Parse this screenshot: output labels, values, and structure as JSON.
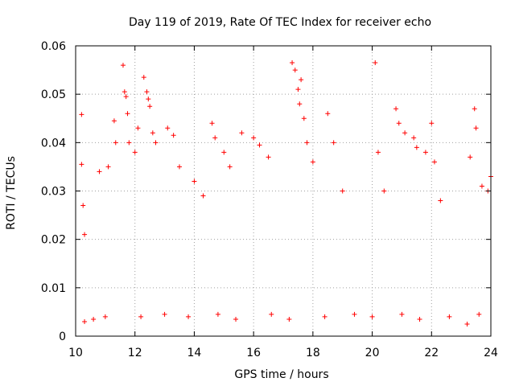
{
  "chart_data": {
    "type": "scatter",
    "title": "Day 119 of 2019, Rate Of TEC Index for receiver echo",
    "xlabel": "GPS time / hours",
    "ylabel": "ROTI / TECUs",
    "xlim": [
      10,
      24
    ],
    "ylim": [
      0,
      0.06
    ],
    "xticks": [
      "10",
      "12",
      "14",
      "16",
      "18",
      "20",
      "22",
      "24"
    ],
    "yticks": [
      "0",
      "0.01",
      "0.02",
      "0.03",
      "0.04",
      "0.05",
      "0.06"
    ],
    "grid": true,
    "marker": "plus",
    "color": "#ff0000",
    "series": [
      {
        "points": [
          [
            10.2,
            0.0458
          ],
          [
            10.2,
            0.0355
          ],
          [
            10.25,
            0.027
          ],
          [
            10.3,
            0.021
          ],
          [
            10.8,
            0.034
          ],
          [
            11.1,
            0.035
          ],
          [
            11.3,
            0.0445
          ],
          [
            11.35,
            0.04
          ],
          [
            11.6,
            0.056
          ],
          [
            11.65,
            0.0505
          ],
          [
            11.7,
            0.0495
          ],
          [
            11.75,
            0.046
          ],
          [
            11.8,
            0.04
          ],
          [
            12.0,
            0.038
          ],
          [
            12.1,
            0.043
          ],
          [
            12.3,
            0.0535
          ],
          [
            12.4,
            0.0505
          ],
          [
            12.45,
            0.049
          ],
          [
            12.5,
            0.0475
          ],
          [
            12.6,
            0.042
          ],
          [
            12.7,
            0.04
          ],
          [
            13.1,
            0.043
          ],
          [
            13.3,
            0.0415
          ],
          [
            13.5,
            0.035
          ],
          [
            14.0,
            0.032
          ],
          [
            14.3,
            0.029
          ],
          [
            14.6,
            0.044
          ],
          [
            14.7,
            0.041
          ],
          [
            15.0,
            0.038
          ],
          [
            15.2,
            0.035
          ],
          [
            15.6,
            0.042
          ],
          [
            16.0,
            0.041
          ],
          [
            16.2,
            0.0395
          ],
          [
            16.5,
            0.037
          ],
          [
            17.3,
            0.0565
          ],
          [
            17.4,
            0.055
          ],
          [
            17.5,
            0.051
          ],
          [
            17.55,
            0.048
          ],
          [
            17.6,
            0.053
          ],
          [
            17.7,
            0.045
          ],
          [
            17.8,
            0.04
          ],
          [
            18.0,
            0.036
          ],
          [
            18.5,
            0.046
          ],
          [
            18.7,
            0.04
          ],
          [
            19.0,
            0.03
          ],
          [
            20.1,
            0.0565
          ],
          [
            20.2,
            0.038
          ],
          [
            20.4,
            0.03
          ],
          [
            20.8,
            0.047
          ],
          [
            20.9,
            0.044
          ],
          [
            21.1,
            0.042
          ],
          [
            21.4,
            0.041
          ],
          [
            21.5,
            0.039
          ],
          [
            21.8,
            0.038
          ],
          [
            22.0,
            0.044
          ],
          [
            22.1,
            0.036
          ],
          [
            22.3,
            0.028
          ],
          [
            23.3,
            0.037
          ],
          [
            23.45,
            0.047
          ],
          [
            23.5,
            0.043
          ],
          [
            23.7,
            0.031
          ],
          [
            23.9,
            0.03
          ],
          [
            24.0,
            0.033
          ],
          [
            10.3,
            0.003
          ],
          [
            10.6,
            0.0035
          ],
          [
            11.0,
            0.004
          ],
          [
            12.2,
            0.004
          ],
          [
            13.0,
            0.0045
          ],
          [
            13.8,
            0.004
          ],
          [
            14.8,
            0.0045
          ],
          [
            15.4,
            0.0035
          ],
          [
            16.6,
            0.0045
          ],
          [
            17.2,
            0.0035
          ],
          [
            18.4,
            0.004
          ],
          [
            19.4,
            0.0045
          ],
          [
            20.0,
            0.004
          ],
          [
            21.0,
            0.0045
          ],
          [
            21.6,
            0.0035
          ],
          [
            22.6,
            0.004
          ],
          [
            23.2,
            0.0025
          ],
          [
            23.6,
            0.0045
          ]
        ]
      }
    ]
  }
}
